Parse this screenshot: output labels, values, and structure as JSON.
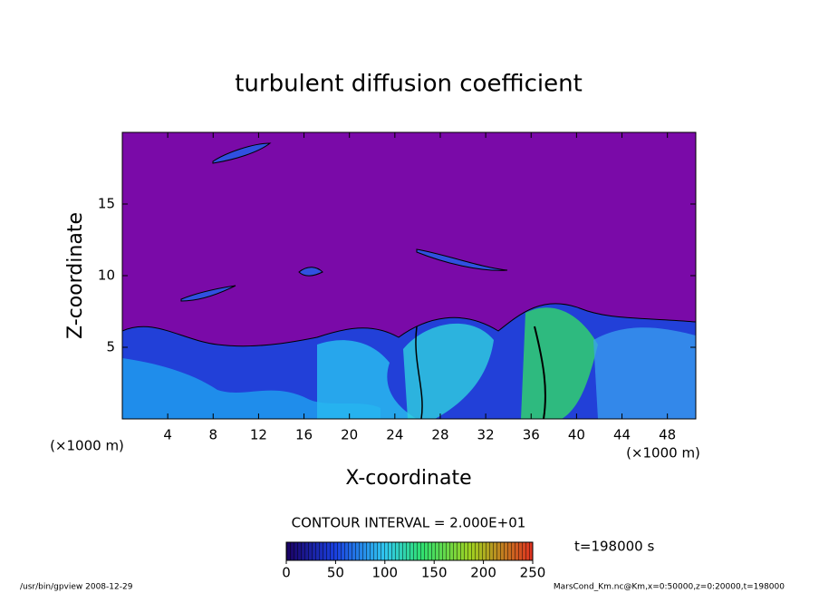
{
  "chart_data": {
    "type": "contour",
    "title": "turbulent diffusion coefficient",
    "x_label": "X-coordinate",
    "y_label": "Z-coordinate",
    "x_unit": "(×1000 m)",
    "xlim": [
      0,
      50.5
    ],
    "ylim": [
      0,
      20
    ],
    "xticks": [
      4,
      8,
      12,
      16,
      20,
      24,
      28,
      32,
      36,
      40,
      44,
      48
    ],
    "yticks": [
      5,
      10,
      15
    ],
    "contour_interval": "CONTOUR INTERVAL = 2.000E+01",
    "clim": [
      0,
      250
    ],
    "cticks": [
      0,
      50,
      100,
      150,
      200,
      250
    ],
    "time_label": "t=198000 s",
    "footer_left": "/usr/bin/gpview  2008-12-29",
    "footer_right": "MarsCond_Km.nc@Km,x=0:50000,z=0:20000,t=198000"
  }
}
